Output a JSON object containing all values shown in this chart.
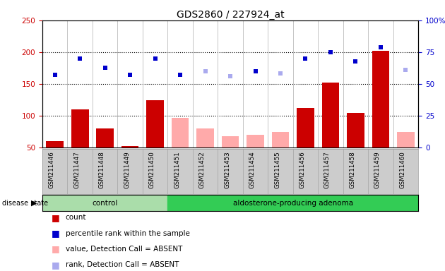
{
  "title": "GDS2860 / 227924_at",
  "samples": [
    "GSM211446",
    "GSM211447",
    "GSM211448",
    "GSM211449",
    "GSM211450",
    "GSM211451",
    "GSM211452",
    "GSM211453",
    "GSM211454",
    "GSM211455",
    "GSM211456",
    "GSM211457",
    "GSM211458",
    "GSM211459",
    "GSM211460"
  ],
  "count_values": [
    60,
    110,
    80,
    52,
    125,
    97,
    80,
    68,
    70,
    75,
    112,
    152,
    105,
    202,
    75
  ],
  "count_absent": [
    false,
    false,
    false,
    false,
    false,
    true,
    true,
    true,
    true,
    true,
    false,
    false,
    false,
    false,
    true
  ],
  "rank_values": [
    165,
    190,
    175,
    165,
    190,
    165,
    170,
    162,
    170,
    167,
    190,
    200,
    185,
    208,
    172
  ],
  "rank_absent": [
    false,
    false,
    false,
    false,
    false,
    false,
    true,
    true,
    false,
    true,
    false,
    false,
    false,
    false,
    true
  ],
  "ylim_left": [
    50,
    250
  ],
  "ylim_right": [
    0,
    100
  ],
  "yticks_left": [
    50,
    100,
    150,
    200,
    250
  ],
  "yticks_right": [
    0,
    25,
    50,
    75,
    100
  ],
  "control_count": 5,
  "group_labels": [
    "control",
    "aldosterone-producing adenoma"
  ],
  "disease_state_label": "disease state",
  "color_count_present": "#cc0000",
  "color_count_absent": "#ffaaaa",
  "color_rank_present": "#0000cc",
  "color_rank_absent": "#aaaaee",
  "bg_color": "#cccccc",
  "control_bg": "#aaddaa",
  "adenoma_bg": "#33cc55",
  "legend_items": [
    "count",
    "percentile rank within the sample",
    "value, Detection Call = ABSENT",
    "rank, Detection Call = ABSENT"
  ]
}
